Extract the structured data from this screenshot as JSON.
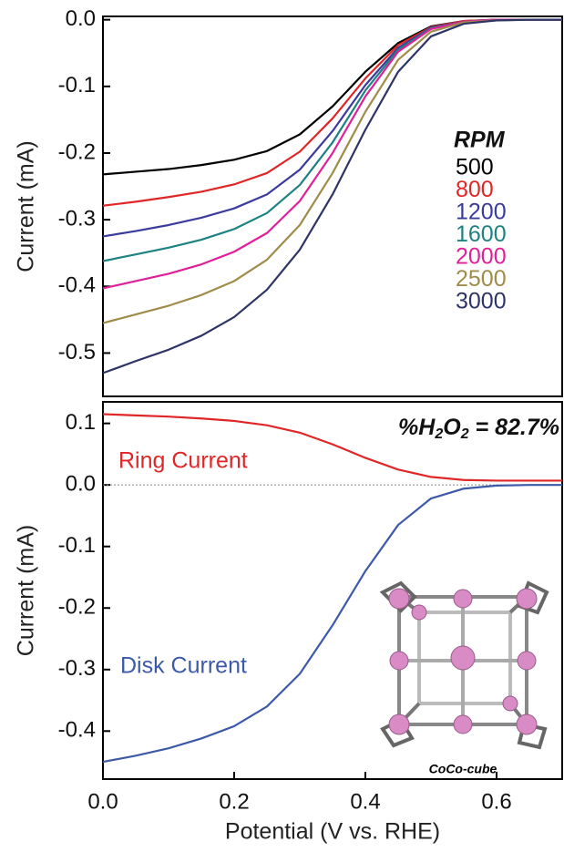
{
  "chart_data": [
    {
      "type": "line",
      "ylabel": "Current (mA)",
      "legend_title": "RPM",
      "x": [
        0,
        0.05,
        0.1,
        0.15,
        0.2,
        0.25,
        0.3,
        0.35,
        0.4,
        0.45,
        0.5,
        0.55,
        0.6,
        0.65,
        0.7
      ],
      "xlim": [
        0,
        0.7
      ],
      "ylim": [
        -0.565,
        0.005
      ],
      "yticks": [
        {
          "value": 0,
          "label": "0.0"
        },
        -0.1,
        -0.2,
        -0.3,
        -0.4,
        -0.5
      ],
      "series": [
        {
          "name": "500",
          "color": "#000000",
          "values": [
            -0.232,
            -0.228,
            -0.224,
            -0.218,
            -0.21,
            -0.197,
            -0.172,
            -0.13,
            -0.078,
            -0.035,
            -0.01,
            -0.002,
            0,
            0,
            0
          ]
        },
        {
          "name": "800",
          "color": "#e02626",
          "values": [
            -0.279,
            -0.273,
            -0.266,
            -0.258,
            -0.247,
            -0.23,
            -0.198,
            -0.148,
            -0.088,
            -0.038,
            -0.011,
            -0.002,
            0,
            0,
            0
          ]
        },
        {
          "name": "1200",
          "color": "#3b3b9e",
          "values": [
            -0.325,
            -0.317,
            -0.308,
            -0.297,
            -0.283,
            -0.262,
            -0.225,
            -0.167,
            -0.098,
            -0.042,
            -0.012,
            -0.003,
            0,
            0,
            0
          ]
        },
        {
          "name": "1600",
          "color": "#1e8282",
          "values": [
            -0.362,
            -0.352,
            -0.342,
            -0.33,
            -0.314,
            -0.29,
            -0.248,
            -0.184,
            -0.106,
            -0.045,
            -0.013,
            -0.003,
            0,
            0,
            0
          ]
        },
        {
          "name": "2000",
          "color": "#e0209a",
          "values": [
            -0.403,
            -0.392,
            -0.381,
            -0.367,
            -0.348,
            -0.32,
            -0.272,
            -0.2,
            -0.115,
            -0.048,
            -0.014,
            -0.003,
            0,
            0,
            0
          ]
        },
        {
          "name": "2500",
          "color": "#a08c4a",
          "values": [
            -0.455,
            -0.442,
            -0.429,
            -0.413,
            -0.392,
            -0.36,
            -0.308,
            -0.23,
            -0.138,
            -0.06,
            -0.018,
            -0.004,
            -0.001,
            0,
            0
          ]
        },
        {
          "name": "3000",
          "color": "#2e3566",
          "values": [
            -0.53,
            -0.512,
            -0.495,
            -0.474,
            -0.446,
            -0.405,
            -0.345,
            -0.262,
            -0.165,
            -0.078,
            -0.025,
            -0.006,
            -0.001,
            0,
            0
          ]
        }
      ]
    },
    {
      "type": "line",
      "ylabel": "Current (mA)",
      "xlabel": "Potential (V vs. RHE)",
      "x": [
        0,
        0.05,
        0.1,
        0.15,
        0.2,
        0.25,
        0.3,
        0.35,
        0.4,
        0.45,
        0.5,
        0.55,
        0.6,
        0.65,
        0.7
      ],
      "xlim": [
        0,
        0.7
      ],
      "ylim": [
        -0.478,
        0.135
      ],
      "xticks": [
        {
          "value": 0,
          "label": "0.0"
        },
        0.2,
        0.4,
        0.6
      ],
      "yticks": [
        0.1,
        {
          "value": 0,
          "label": "0.0"
        },
        -0.1,
        -0.2,
        -0.3,
        -0.4
      ],
      "zero_line": true,
      "annotation": [
        "%H",
        "2",
        "O",
        "2",
        " = 82.7%"
      ],
      "inset_label": "CoCo-cube",
      "series": [
        {
          "name": "Ring Current",
          "color": "#e02626",
          "values": [
            0.115,
            0.113,
            0.111,
            0.108,
            0.104,
            0.097,
            0.085,
            0.066,
            0.044,
            0.025,
            0.013,
            0.008,
            0.007,
            0.007,
            0.007
          ]
        },
        {
          "name": "Disk Current",
          "color": "#3d5aa8",
          "values": [
            -0.45,
            -0.44,
            -0.428,
            -0.412,
            -0.392,
            -0.36,
            -0.307,
            -0.228,
            -0.14,
            -0.065,
            -0.022,
            -0.006,
            -0.001,
            0,
            0
          ]
        }
      ]
    }
  ]
}
